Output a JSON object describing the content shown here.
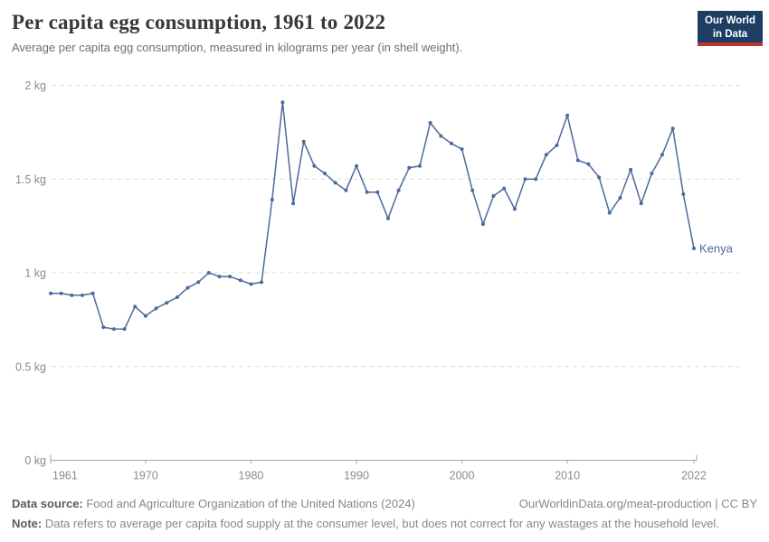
{
  "header": {
    "title": "Per capita egg consumption, 1961 to 2022",
    "subtitle": "Average per capita egg consumption, measured in kilograms per year (in shell weight)."
  },
  "logo": {
    "line1": "Our World",
    "line2": "in Data",
    "bg_color": "#1d3d63",
    "stripe_color": "#bb352b"
  },
  "chart_data": {
    "type": "line",
    "title": "Per capita egg consumption, 1961 to 2022",
    "ylabel": "kilograms per year (in shell weight)",
    "xlabel": "year",
    "grid": "horizontal-dashed",
    "legend_position": "end-of-line",
    "xlim": [
      1961,
      2022
    ],
    "ylim": [
      0,
      2
    ],
    "x_ticks": [
      1961,
      1970,
      1980,
      1990,
      2000,
      2010,
      2022
    ],
    "y_ticks": [
      {
        "v": 0,
        "label": "0 kg"
      },
      {
        "v": 0.5,
        "label": "0.5 kg"
      },
      {
        "v": 1,
        "label": "1 kg"
      },
      {
        "v": 1.5,
        "label": "1.5 kg"
      },
      {
        "v": 2,
        "label": "2 kg"
      }
    ],
    "series": [
      {
        "name": "Kenya",
        "color": "#4c6a9c",
        "x": [
          1961,
          1962,
          1963,
          1964,
          1965,
          1966,
          1967,
          1968,
          1969,
          1970,
          1971,
          1972,
          1973,
          1974,
          1975,
          1976,
          1977,
          1978,
          1979,
          1980,
          1981,
          1982,
          1983,
          1984,
          1985,
          1986,
          1987,
          1988,
          1989,
          1990,
          1991,
          1992,
          1993,
          1994,
          1995,
          1996,
          1997,
          1998,
          1999,
          2000,
          2001,
          2002,
          2003,
          2004,
          2005,
          2006,
          2007,
          2008,
          2009,
          2010,
          2011,
          2012,
          2013,
          2014,
          2015,
          2016,
          2017,
          2018,
          2019,
          2020,
          2021,
          2022
        ],
        "values": [
          0.89,
          0.89,
          0.88,
          0.88,
          0.89,
          0.71,
          0.7,
          0.7,
          0.82,
          0.77,
          0.81,
          0.84,
          0.87,
          0.92,
          0.95,
          1.0,
          0.98,
          0.98,
          0.96,
          0.94,
          0.95,
          1.39,
          1.91,
          1.37,
          1.7,
          1.57,
          1.53,
          1.48,
          1.44,
          1.57,
          1.43,
          1.43,
          1.29,
          1.44,
          1.56,
          1.57,
          1.8,
          1.73,
          1.69,
          1.66,
          1.44,
          1.26,
          1.41,
          1.45,
          1.34,
          1.5,
          1.5,
          1.63,
          1.68,
          1.84,
          1.6,
          1.58,
          1.51,
          1.32,
          1.4,
          1.55,
          1.37,
          1.53,
          1.63,
          1.77,
          1.42,
          1.13
        ]
      }
    ],
    "colors": {
      "gridline": "#dcdcdc",
      "axis": "#a9a9a9",
      "tick_text": "#8a8a8a"
    }
  },
  "footer": {
    "source_label": "Data source:",
    "source_text": " Food and Agriculture Organization of the United Nations (2024)",
    "link_text": "OurWorldinData.org/meat-production | CC BY",
    "note_label": "Note:",
    "note_text": " Data refers to average per capita food supply at the consumer level, but does not correct for any wastages at the household level."
  }
}
